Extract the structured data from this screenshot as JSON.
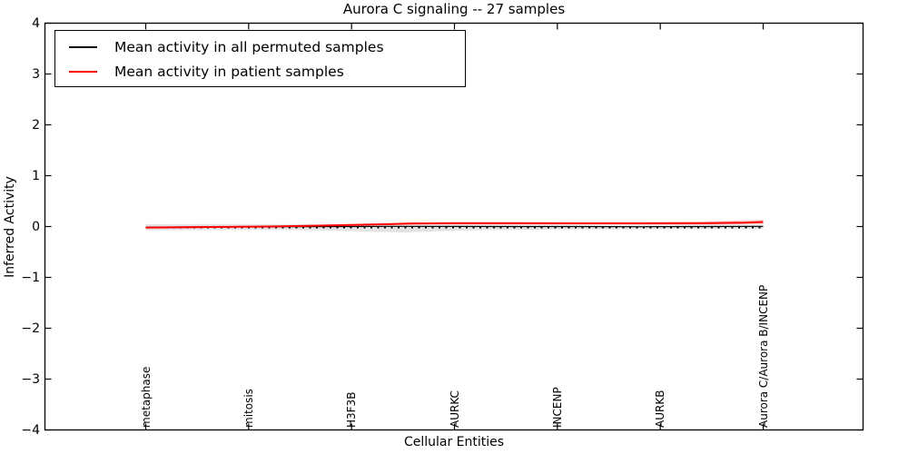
{
  "title": "Aurora C signaling -- 27 samples",
  "axes": {
    "ylabel": "Inferred Activity",
    "xlabel": "Cellular Entities",
    "yticks": [
      "4",
      "3",
      "2",
      "1",
      "0",
      "−1",
      "−2",
      "−3",
      "−4"
    ]
  },
  "legend": {
    "items": [
      {
        "label": "Mean activity in all permuted samples",
        "color": "#000000"
      },
      {
        "label": "Mean activity in patient samples",
        "color": "#ff0000"
      }
    ]
  },
  "chart_data": {
    "type": "line",
    "title": "Aurora C signaling -- 27 samples",
    "xlabel": "Cellular Entities",
    "ylabel": "Inferred Activity",
    "ylim": [
      -4,
      4
    ],
    "grid": false,
    "legend_position": "upper left",
    "categories": [
      "metaphase",
      "mitosis",
      "H3F3B",
      "AURKC",
      "INCENP",
      "AURKB",
      "Aurora C/Aurora B/INCENP"
    ],
    "zero_line": {
      "y": 0,
      "style": "dotted",
      "color": "#000000"
    },
    "series": [
      {
        "name": "Mean activity in all permuted samples",
        "color": "#000000",
        "points": [
          [
            0,
            -0.01
          ],
          [
            0.08,
            -0.008
          ],
          [
            0.17,
            -0.005
          ],
          [
            0.25,
            -0.003
          ],
          [
            0.33,
            0.0
          ],
          [
            0.4,
            0.003
          ],
          [
            0.5,
            0.002
          ],
          [
            0.6,
            0.0
          ],
          [
            0.7,
            0.0
          ],
          [
            0.8,
            -0.003
          ],
          [
            0.9,
            0.0
          ],
          [
            1,
            0.003
          ]
        ]
      },
      {
        "name": "Mean activity in patient samples",
        "color": "#ff0000",
        "points": [
          [
            0,
            -0.02
          ],
          [
            0.05,
            -0.015
          ],
          [
            0.1,
            -0.01
          ],
          [
            0.15,
            -0.005
          ],
          [
            0.2,
            0.0
          ],
          [
            0.25,
            0.012
          ],
          [
            0.3,
            0.022
          ],
          [
            0.35,
            0.035
          ],
          [
            0.4,
            0.05
          ],
          [
            0.43,
            0.06
          ],
          [
            0.5,
            0.065
          ],
          [
            0.6,
            0.065
          ],
          [
            0.7,
            0.062
          ],
          [
            0.8,
            0.062
          ],
          [
            0.9,
            0.065
          ],
          [
            0.97,
            0.075
          ],
          [
            1,
            0.09
          ]
        ]
      }
    ],
    "bands": [
      {
        "name": "permuted-samples-std-band",
        "color": "#e3e3e3",
        "points": [
          [
            0,
            0.045,
            -0.075
          ],
          [
            0.1,
            0.05,
            -0.07
          ],
          [
            0.2,
            0.045,
            -0.065
          ],
          [
            0.3,
            0.04,
            -0.08
          ],
          [
            0.36,
            0.035,
            -0.1
          ],
          [
            0.42,
            0.03,
            -0.115
          ],
          [
            0.48,
            0.03,
            -0.09
          ],
          [
            0.55,
            0.03,
            -0.07
          ],
          [
            0.65,
            0.03,
            -0.06
          ],
          [
            0.75,
            0.03,
            -0.055
          ],
          [
            0.85,
            0.035,
            -0.05
          ],
          [
            1,
            0.04,
            -0.05
          ]
        ]
      },
      {
        "name": "patient-samples-std-band",
        "color": "#f8caca",
        "points": [
          [
            0,
            0.0,
            -0.04
          ],
          [
            0.1,
            0.005,
            -0.03
          ],
          [
            0.2,
            0.015,
            -0.015
          ],
          [
            0.3,
            0.04,
            0.0
          ],
          [
            0.4,
            0.07,
            0.03
          ],
          [
            0.5,
            0.09,
            0.04
          ],
          [
            0.6,
            0.09,
            0.04
          ],
          [
            0.7,
            0.085,
            0.04
          ],
          [
            0.8,
            0.09,
            0.04
          ],
          [
            0.9,
            0.095,
            0.04
          ],
          [
            1,
            0.135,
            0.05
          ]
        ]
      }
    ]
  }
}
